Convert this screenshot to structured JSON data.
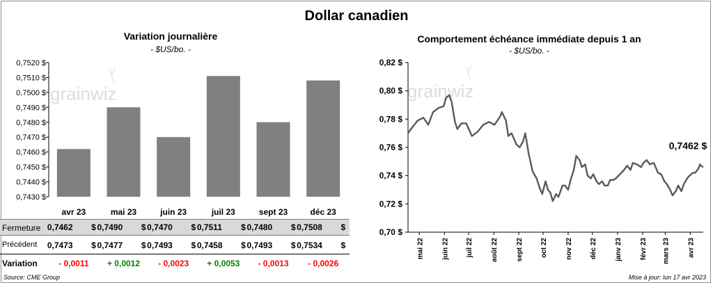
{
  "header": {
    "title": "Dollar canadien"
  },
  "left_chart": {
    "title": "Variation  journalière",
    "subtitle": "- $US/bo. -",
    "watermark": "grainwiz"
  },
  "right_chart": {
    "title": "Comportement échéance immédiate depuis 1 an",
    "subtitle": "- $US/bo. -",
    "watermark": "grainwiz",
    "last_label": "0,7462 $"
  },
  "table": {
    "rows": [
      {
        "label": "Fermeture",
        "values": [
          "0,7462",
          "0,7490",
          "0,7470",
          "0,7511",
          "0,7480",
          "0,7508"
        ],
        "unit": "$"
      },
      {
        "label": "Précédent",
        "values": [
          "0,7473",
          "0,7477",
          "0,7493",
          "0,7458",
          "0,7493",
          "0,7534"
        ],
        "unit": "$"
      },
      {
        "label": "Variation",
        "values": [
          "- 0,0011",
          "+ 0,0012",
          "- 0,0023",
          "+ 0,0053",
          "- 0,0013",
          "- 0,0026"
        ]
      }
    ],
    "colors": {
      "negative": "#ff0000",
      "positive": "#008000"
    }
  },
  "footer": {
    "source": "Source: CME Group",
    "update": "Mise à jour: lun 17 avr 2023"
  },
  "chart_data": [
    {
      "type": "bar",
      "title": "Variation  journalière",
      "subtitle": "- $US/bo. -",
      "categories": [
        "avr 23",
        "mai 23",
        "juin 23",
        "juil 23",
        "sept 23",
        "déc 23"
      ],
      "values": [
        0.7462,
        0.749,
        0.747,
        0.7511,
        0.748,
        0.7508
      ],
      "ylim": [
        0.743,
        0.752
      ],
      "yticks": [
        0.743,
        0.744,
        0.745,
        0.746,
        0.747,
        0.748,
        0.749,
        0.75,
        0.751,
        0.752
      ],
      "ytick_labels": [
        "0,7430 $",
        "0,7440 $",
        "0,7450 $",
        "0,7460 $",
        "0,7470 $",
        "0,7480 $",
        "0,7490 $",
        "0,7500 $",
        "0,7510 $",
        "0,7520 $"
      ],
      "bar_color": "#808080",
      "grid": false
    },
    {
      "type": "line",
      "title": "Comportement échéance immédiate depuis 1 an",
      "subtitle": "- $US/bo. -",
      "x_start": "2022-04-17",
      "x_end": "2023-04-17",
      "xtick_labels": [
        "mai 22",
        "juin 22",
        "juil 22",
        "août 22",
        "sept 22",
        "oct 22",
        "nov 22",
        "déc 22",
        "janv 23",
        "févr 23",
        "mars 23",
        "avr 23"
      ],
      "xtick_dates": [
        "2022-05-01",
        "2022-06-01",
        "2022-07-01",
        "2022-08-01",
        "2022-09-01",
        "2022-10-01",
        "2022-11-01",
        "2022-12-01",
        "2023-01-01",
        "2023-02-01",
        "2023-03-01",
        "2023-04-01"
      ],
      "ylim": [
        0.7,
        0.82
      ],
      "yticks": [
        0.7,
        0.72,
        0.74,
        0.76,
        0.78,
        0.8,
        0.82
      ],
      "ytick_labels": [
        "0,70 $",
        "0,72 $",
        "0,74 $",
        "0,76 $",
        "0,78 $",
        "0,80 $",
        "0,82 $"
      ],
      "line_color": "#595959",
      "grid": false,
      "annotation": "0,7462 $",
      "points": [
        [
          "2022-04-17",
          0.77
        ],
        [
          "2022-04-22",
          0.774
        ],
        [
          "2022-04-29",
          0.779
        ],
        [
          "2022-05-06",
          0.781
        ],
        [
          "2022-05-12",
          0.776
        ],
        [
          "2022-05-18",
          0.785
        ],
        [
          "2022-05-25",
          0.788
        ],
        [
          "2022-05-31",
          0.789
        ],
        [
          "2022-06-03",
          0.795
        ],
        [
          "2022-06-07",
          0.797
        ],
        [
          "2022-06-10",
          0.792
        ],
        [
          "2022-06-14",
          0.778
        ],
        [
          "2022-06-17",
          0.773
        ],
        [
          "2022-06-22",
          0.777
        ],
        [
          "2022-06-28",
          0.777
        ],
        [
          "2022-07-05",
          0.768
        ],
        [
          "2022-07-12",
          0.771
        ],
        [
          "2022-07-19",
          0.776
        ],
        [
          "2022-07-26",
          0.778
        ],
        [
          "2022-08-02",
          0.776
        ],
        [
          "2022-08-09",
          0.782
        ],
        [
          "2022-08-11",
          0.785
        ],
        [
          "2022-08-16",
          0.779
        ],
        [
          "2022-08-19",
          0.768
        ],
        [
          "2022-08-23",
          0.77
        ],
        [
          "2022-08-29",
          0.762
        ],
        [
          "2022-09-02",
          0.76
        ],
        [
          "2022-09-06",
          0.764
        ],
        [
          "2022-09-09",
          0.77
        ],
        [
          "2022-09-13",
          0.756
        ],
        [
          "2022-09-18",
          0.743
        ],
        [
          "2022-09-23",
          0.738
        ],
        [
          "2022-09-27",
          0.731
        ],
        [
          "2022-09-30",
          0.727
        ],
        [
          "2022-10-04",
          0.736
        ],
        [
          "2022-10-07",
          0.73
        ],
        [
          "2022-10-10",
          0.728
        ],
        [
          "2022-10-13",
          0.722
        ],
        [
          "2022-10-17",
          0.727
        ],
        [
          "2022-10-20",
          0.725
        ],
        [
          "2022-10-25",
          0.733
        ],
        [
          "2022-10-28",
          0.733
        ],
        [
          "2022-11-01",
          0.73
        ],
        [
          "2022-11-04",
          0.737
        ],
        [
          "2022-11-08",
          0.744
        ],
        [
          "2022-11-11",
          0.754
        ],
        [
          "2022-11-15",
          0.751
        ],
        [
          "2022-11-18",
          0.746
        ],
        [
          "2022-11-22",
          0.748
        ],
        [
          "2022-11-25",
          0.74
        ],
        [
          "2022-11-29",
          0.738
        ],
        [
          "2022-12-02",
          0.741
        ],
        [
          "2022-12-06",
          0.736
        ],
        [
          "2022-12-09",
          0.734
        ],
        [
          "2022-12-13",
          0.736
        ],
        [
          "2022-12-16",
          0.733
        ],
        [
          "2022-12-20",
          0.733
        ],
        [
          "2022-12-23",
          0.737
        ],
        [
          "2022-12-27",
          0.737
        ],
        [
          "2022-12-30",
          0.738
        ],
        [
          "2023-01-04",
          0.741
        ],
        [
          "2023-01-09",
          0.744
        ],
        [
          "2023-01-13",
          0.747
        ],
        [
          "2023-01-17",
          0.744
        ],
        [
          "2023-01-20",
          0.749
        ],
        [
          "2023-01-25",
          0.748
        ],
        [
          "2023-01-30",
          0.746
        ],
        [
          "2023-02-02",
          0.749
        ],
        [
          "2023-02-06",
          0.751
        ],
        [
          "2023-02-10",
          0.748
        ],
        [
          "2023-02-15",
          0.749
        ],
        [
          "2023-02-20",
          0.742
        ],
        [
          "2023-02-24",
          0.741
        ],
        [
          "2023-02-28",
          0.736
        ],
        [
          "2023-03-03",
          0.734
        ],
        [
          "2023-03-07",
          0.73
        ],
        [
          "2023-03-10",
          0.726
        ],
        [
          "2023-03-14",
          0.729
        ],
        [
          "2023-03-17",
          0.733
        ],
        [
          "2023-03-21",
          0.729
        ],
        [
          "2023-03-24",
          0.734
        ],
        [
          "2023-03-28",
          0.738
        ],
        [
          "2023-03-31",
          0.74
        ],
        [
          "2023-04-04",
          0.742
        ],
        [
          "2023-04-07",
          0.742
        ],
        [
          "2023-04-11",
          0.745
        ],
        [
          "2023-04-13",
          0.748
        ],
        [
          "2023-04-14",
          0.747
        ],
        [
          "2023-04-17",
          0.746
        ]
      ]
    }
  ]
}
